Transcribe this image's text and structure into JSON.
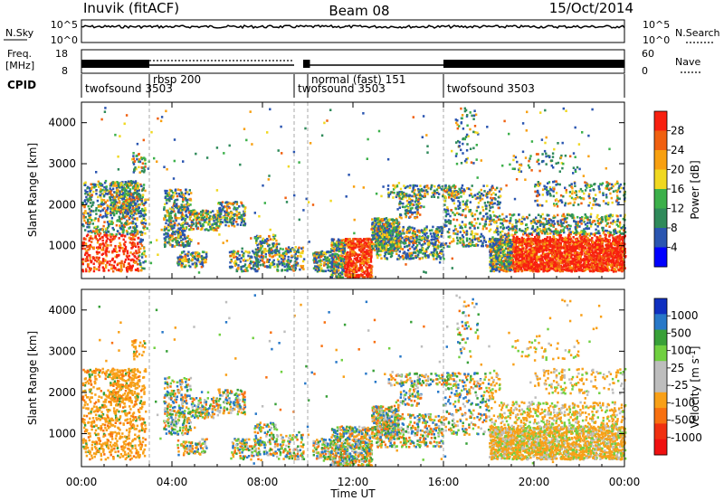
{
  "header": {
    "station": "Inuvik (fitACF)",
    "beam": "Beam 08",
    "date": "15/Oct/2014"
  },
  "strip_labels": {
    "nsky": "N.Sky",
    "freq_line1": "Freq.",
    "freq_line2": "[MHz]",
    "cpid": "CPID",
    "nsearch": "N.Search",
    "nave": "Nave"
  },
  "strip_ticks": {
    "noise_left_top": "10^5",
    "noise_left_bottom": "10^0",
    "noise_right_top": "10^5",
    "noise_right_bottom": "10^0",
    "freq_left_top": "18",
    "freq_left_bottom": "8",
    "nave_right_top": "60",
    "nave_right_bottom": "0"
  },
  "cpid_segments": [
    {
      "label": "twofsound 3503",
      "start_hour": 0.0,
      "end_hour": 3.0
    },
    {
      "label": "rbsp 200",
      "start_hour": 3.0,
      "end_hour": 9.4
    },
    {
      "label": "twofsound 3503",
      "start_hour": 9.4,
      "end_hour": 10.0
    },
    {
      "label": "normal (fast) 151",
      "start_hour": 10.0,
      "end_hour": 16.0
    },
    {
      "label": "twofsound 3503",
      "start_hour": 16.0,
      "end_hour": 24.0
    }
  ],
  "colors": {
    "power_scale": [
      "#0000ff",
      "#2a55b0",
      "#2f8a5a",
      "#3cb04a",
      "#f0d820",
      "#f8a010",
      "#f06010",
      "#f82010"
    ],
    "velocity_scale": [
      "#1030c0",
      "#2878c8",
      "#38a038",
      "#70d040",
      "#bdbdbd",
      "#bdbdbd",
      "#f8a018",
      "#f87010",
      "#f03010",
      "#f01010"
    ]
  },
  "chart_data": [
    {
      "type": "heatmap",
      "panel": "power",
      "ylabel": "Slant Range [km]",
      "colorbar_label": "Power [dB]",
      "colorbar_ticks": [
        "4",
        "8",
        "12",
        "16",
        "20",
        "24",
        "28"
      ],
      "ylim": [
        200,
        4500
      ],
      "y_ticks": [
        "1000",
        "2000",
        "3000",
        "4000"
      ]
    },
    {
      "type": "heatmap",
      "panel": "velocity",
      "ylabel": "Slant Range [km]",
      "colorbar_label": "Velocity [m s^-1]",
      "colorbar_ticks": [
        "1000",
        "500",
        "100",
        "25",
        "-25",
        "-100",
        "-500",
        "-1000"
      ],
      "ylim": [
        200,
        4500
      ],
      "y_ticks": [
        "1000",
        "2000",
        "3000",
        "4000"
      ]
    }
  ],
  "x_axis": {
    "label": "Time UT",
    "ticks": [
      "00:00",
      "04:00",
      "08:00",
      "12:00",
      "16:00",
      "20:00",
      "00:00"
    ]
  }
}
